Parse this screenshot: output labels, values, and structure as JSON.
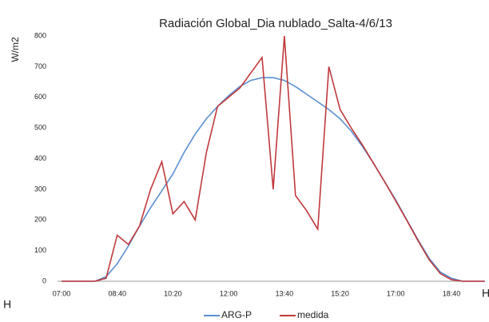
{
  "chart_data": {
    "type": "line",
    "title": "Radiación Global_Dia nublado_Salta-4/6/13",
    "y_label": "W/m2",
    "annotations": [
      "H",
      "H"
    ],
    "categories": [
      "07:00",
      null,
      null,
      null,
      null,
      "08:40",
      null,
      null,
      null,
      null,
      "10:20",
      null,
      null,
      null,
      null,
      "12:00",
      null,
      null,
      null,
      null,
      "13:40",
      null,
      null,
      null,
      null,
      "15:20",
      null,
      null,
      null,
      null,
      "17:00",
      null,
      null,
      null,
      null,
      "18:40",
      null,
      null,
      null
    ],
    "series": [
      {
        "name": "ARG-P",
        "color": "#5b8fd0",
        "values": [
          0,
          0,
          0,
          0,
          15,
          57,
          115,
          180,
          240,
          295,
          350,
          420,
          480,
          530,
          570,
          605,
          635,
          655,
          664,
          664,
          655,
          635,
          610,
          585,
          560,
          530,
          490,
          440,
          385,
          325,
          265,
          200,
          135,
          75,
          30,
          10,
          0,
          0,
          0
        ]
      },
      {
        "name": "medida",
        "color": "#c0393b",
        "values": [
          0,
          0,
          0,
          0,
          10,
          150,
          120,
          180,
          300,
          390,
          220,
          260,
          200,
          420,
          570,
          600,
          630,
          680,
          730,
          300,
          800,
          280,
          230,
          170,
          700,
          560,
          500,
          445,
          385,
          325,
          262,
          198,
          132,
          70,
          25,
          5,
          0,
          0,
          0
        ]
      }
    ],
    "ylim": [
      0,
      800
    ],
    "yticks": [
      0,
      100,
      200,
      300,
      400,
      500,
      600,
      700,
      800
    ],
    "grid": false,
    "legend": "bottom"
  }
}
